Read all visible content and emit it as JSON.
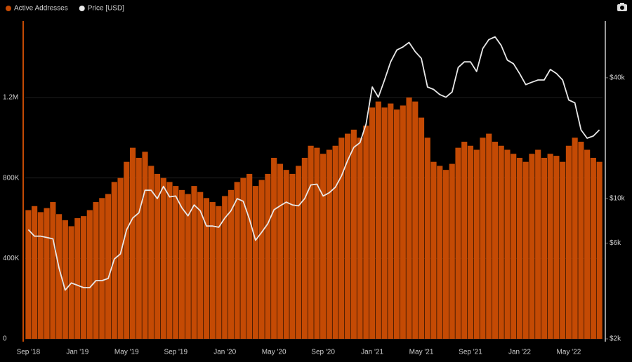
{
  "chart_data": {
    "type": "bar-line",
    "categories": [
      "Sep '18",
      null,
      null,
      null,
      null,
      null,
      null,
      null,
      "Jan '19",
      null,
      null,
      null,
      null,
      null,
      null,
      null,
      "May '19",
      null,
      null,
      null,
      null,
      null,
      null,
      null,
      "Sep '19",
      null,
      null,
      null,
      null,
      null,
      null,
      null,
      "Jan '20",
      null,
      null,
      null,
      null,
      null,
      null,
      null,
      "May '20",
      null,
      null,
      null,
      null,
      null,
      null,
      null,
      "Sep '20",
      null,
      null,
      null,
      null,
      null,
      null,
      null,
      "Jan '21",
      null,
      null,
      null,
      null,
      null,
      null,
      null,
      "May '21",
      null,
      null,
      null,
      null,
      null,
      null,
      null,
      "Sep '21",
      null,
      null,
      null,
      null,
      null,
      null,
      null,
      "Jan '22",
      null,
      null,
      null,
      null,
      null,
      null,
      null,
      "May '22",
      null,
      null,
      null,
      null,
      null
    ],
    "series": [
      {
        "name": "Active Addresses",
        "color": "#c44a04",
        "axis": "y",
        "values": [
          640000,
          660000,
          630000,
          650000,
          680000,
          620000,
          590000,
          560000,
          600000,
          610000,
          640000,
          680000,
          700000,
          720000,
          780000,
          800000,
          880000,
          950000,
          900000,
          930000,
          860000,
          820000,
          800000,
          780000,
          760000,
          740000,
          720000,
          760000,
          730000,
          700000,
          680000,
          660000,
          710000,
          740000,
          780000,
          800000,
          820000,
          760000,
          790000,
          820000,
          900000,
          870000,
          840000,
          820000,
          860000,
          900000,
          960000,
          950000,
          920000,
          940000,
          960000,
          1000000,
          1020000,
          1040000,
          1000000,
          1060000,
          1150000,
          1180000,
          1150000,
          1170000,
          1140000,
          1160000,
          1200000,
          1180000,
          1100000,
          1000000,
          880000,
          860000,
          840000,
          870000,
          950000,
          980000,
          960000,
          940000,
          1000000,
          1020000,
          980000,
          960000,
          940000,
          920000,
          900000,
          880000,
          920000,
          940000,
          900000,
          920000,
          910000,
          880000,
          960000,
          1000000,
          980000,
          940000,
          900000,
          880000
        ]
      },
      {
        "name": "Price [USD]",
        "color": "#e8e8e8",
        "axis": "y2",
        "values": [
          7000,
          6500,
          6500,
          6400,
          6300,
          4500,
          3500,
          3800,
          3700,
          3600,
          3600,
          3900,
          3900,
          4000,
          5000,
          5300,
          7000,
          8000,
          8500,
          11000,
          11000,
          10000,
          11500,
          10200,
          10300,
          9000,
          8200,
          9300,
          8700,
          7300,
          7300,
          7200,
          8000,
          8700,
          10000,
          9700,
          7900,
          6200,
          6800,
          7500,
          8800,
          9200,
          9600,
          9300,
          9200,
          10000,
          11700,
          11800,
          10300,
          10700,
          11400,
          13000,
          15500,
          18000,
          19000,
          23500,
          36000,
          32000,
          39000,
          48000,
          55000,
          57000,
          60000,
          54000,
          50000,
          36000,
          35000,
          33000,
          32000,
          34000,
          45000,
          48000,
          48000,
          43000,
          56000,
          62000,
          64000,
          58000,
          49000,
          47000,
          42000,
          37000,
          38000,
          39000,
          39000,
          44000,
          42000,
          39000,
          31000,
          30000,
          22000,
          20000,
          20500,
          22000
        ]
      }
    ],
    "ylim": [
      0,
      1580000
    ],
    "yticks": [
      0,
      {
        "value": 400000,
        "label": "400K"
      },
      {
        "value": 800000,
        "label": "800K"
      },
      {
        "value": 1200000,
        "label": "1.2M"
      }
    ],
    "y2lim": [
      2000,
      76700
    ],
    "y2log": true,
    "y2ticks": [
      {
        "value": 2000,
        "label": "$2k"
      },
      {
        "value": 6000,
        "label": "$6k"
      },
      {
        "value": 10000,
        "label": "$10k"
      },
      {
        "value": 40000,
        "label": "$40k"
      }
    ],
    "grid": true
  }
}
